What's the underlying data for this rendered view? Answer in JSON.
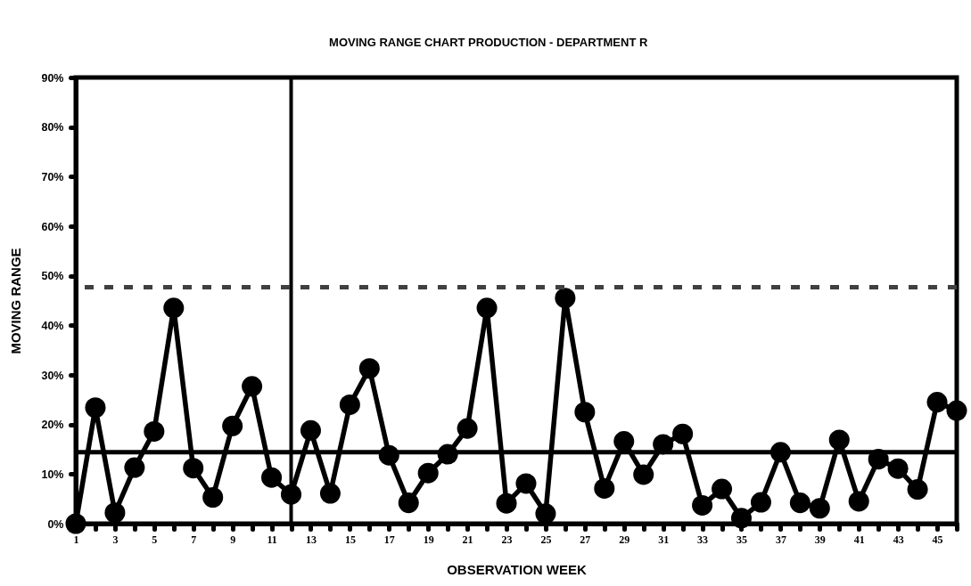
{
  "chart_data": {
    "type": "line",
    "title": "MOVING RANGE CHART PRODUCTION - DEPARTMENT R",
    "xlabel": "OBSERVATION WEEK",
    "ylabel": "MOVING RANGE",
    "x": [
      1,
      2,
      3,
      4,
      5,
      6,
      7,
      8,
      9,
      10,
      11,
      12,
      13,
      14,
      15,
      16,
      17,
      18,
      19,
      20,
      21,
      22,
      23,
      24,
      25,
      26,
      27,
      28,
      29,
      30,
      31,
      32,
      33,
      34,
      35,
      36,
      37,
      38,
      39,
      40,
      41,
      42,
      43,
      44,
      45,
      46
    ],
    "series": [
      {
        "color": "#000000",
        "values": [
          0,
          23.4,
          2.2,
          11.3,
          18.6,
          43.5,
          11.2,
          5.3,
          19.7,
          27.7,
          9.3,
          5.9,
          18.8,
          6.1,
          24.0,
          31.3,
          13.8,
          4.2,
          10.2,
          14.0,
          19.2,
          43.5,
          4.1,
          8.1,
          2.0,
          45.5,
          22.5,
          7.1,
          16.6,
          9.9,
          16.0,
          18.1,
          3.7,
          7.0,
          1.1,
          4.3,
          14.4,
          4.2,
          3.1,
          16.9,
          4.5,
          13.0,
          11.1,
          6.9,
          24.5,
          22.8
        ]
      }
    ],
    "xlim": [
      1,
      46
    ],
    "xticks": [
      1,
      {
        "value": 2,
        "label": null
      },
      3,
      {
        "value": 4,
        "label": null
      },
      5,
      {
        "value": 6,
        "label": null
      },
      7,
      {
        "value": 8,
        "label": null
      },
      9,
      {
        "value": 10,
        "label": null
      },
      11,
      {
        "value": 12,
        "label": null
      },
      13,
      {
        "value": 14,
        "label": null
      },
      15,
      {
        "value": 16,
        "label": null
      },
      17,
      {
        "value": 18,
        "label": null
      },
      19,
      {
        "value": 20,
        "label": null
      },
      21,
      {
        "value": 22,
        "label": null
      },
      23,
      {
        "value": 24,
        "label": null
      },
      25,
      {
        "value": 26,
        "label": null
      },
      27,
      {
        "value": 28,
        "label": null
      },
      29,
      {
        "value": 30,
        "label": null
      },
      31,
      {
        "value": 32,
        "label": null
      },
      33,
      {
        "value": 34,
        "label": null
      },
      35,
      {
        "value": 36,
        "label": null
      },
      37,
      {
        "value": 38,
        "label": null
      },
      39,
      {
        "value": 40,
        "label": null
      },
      41,
      {
        "value": 42,
        "label": null
      },
      43,
      {
        "value": 44,
        "label": null
      },
      45,
      {
        "value": 46,
        "label": null
      }
    ],
    "ylim": [
      0,
      90
    ],
    "yticks": [
      {
        "value": 0,
        "label": "0%"
      },
      {
        "value": 10,
        "label": "10%"
      },
      {
        "value": 20,
        "label": "20%"
      },
      {
        "value": 30,
        "label": "30%"
      },
      {
        "value": 40,
        "label": "40%"
      },
      {
        "value": 50,
        "label": "50%"
      },
      {
        "value": 60,
        "label": "60%"
      },
      {
        "value": 70,
        "label": "70%"
      },
      {
        "value": 80,
        "label": "80%"
      },
      {
        "value": 90,
        "label": "90%"
      }
    ],
    "marker": "circle",
    "ref_lines": [
      {
        "axis": "x",
        "value": 12,
        "color": "#000000"
      },
      {
        "axis": "y",
        "value": 14.4,
        "color": "#000000"
      },
      {
        "axis": "y",
        "value": 47.7,
        "color": "#404040",
        "line_style": "dashed"
      }
    ]
  }
}
